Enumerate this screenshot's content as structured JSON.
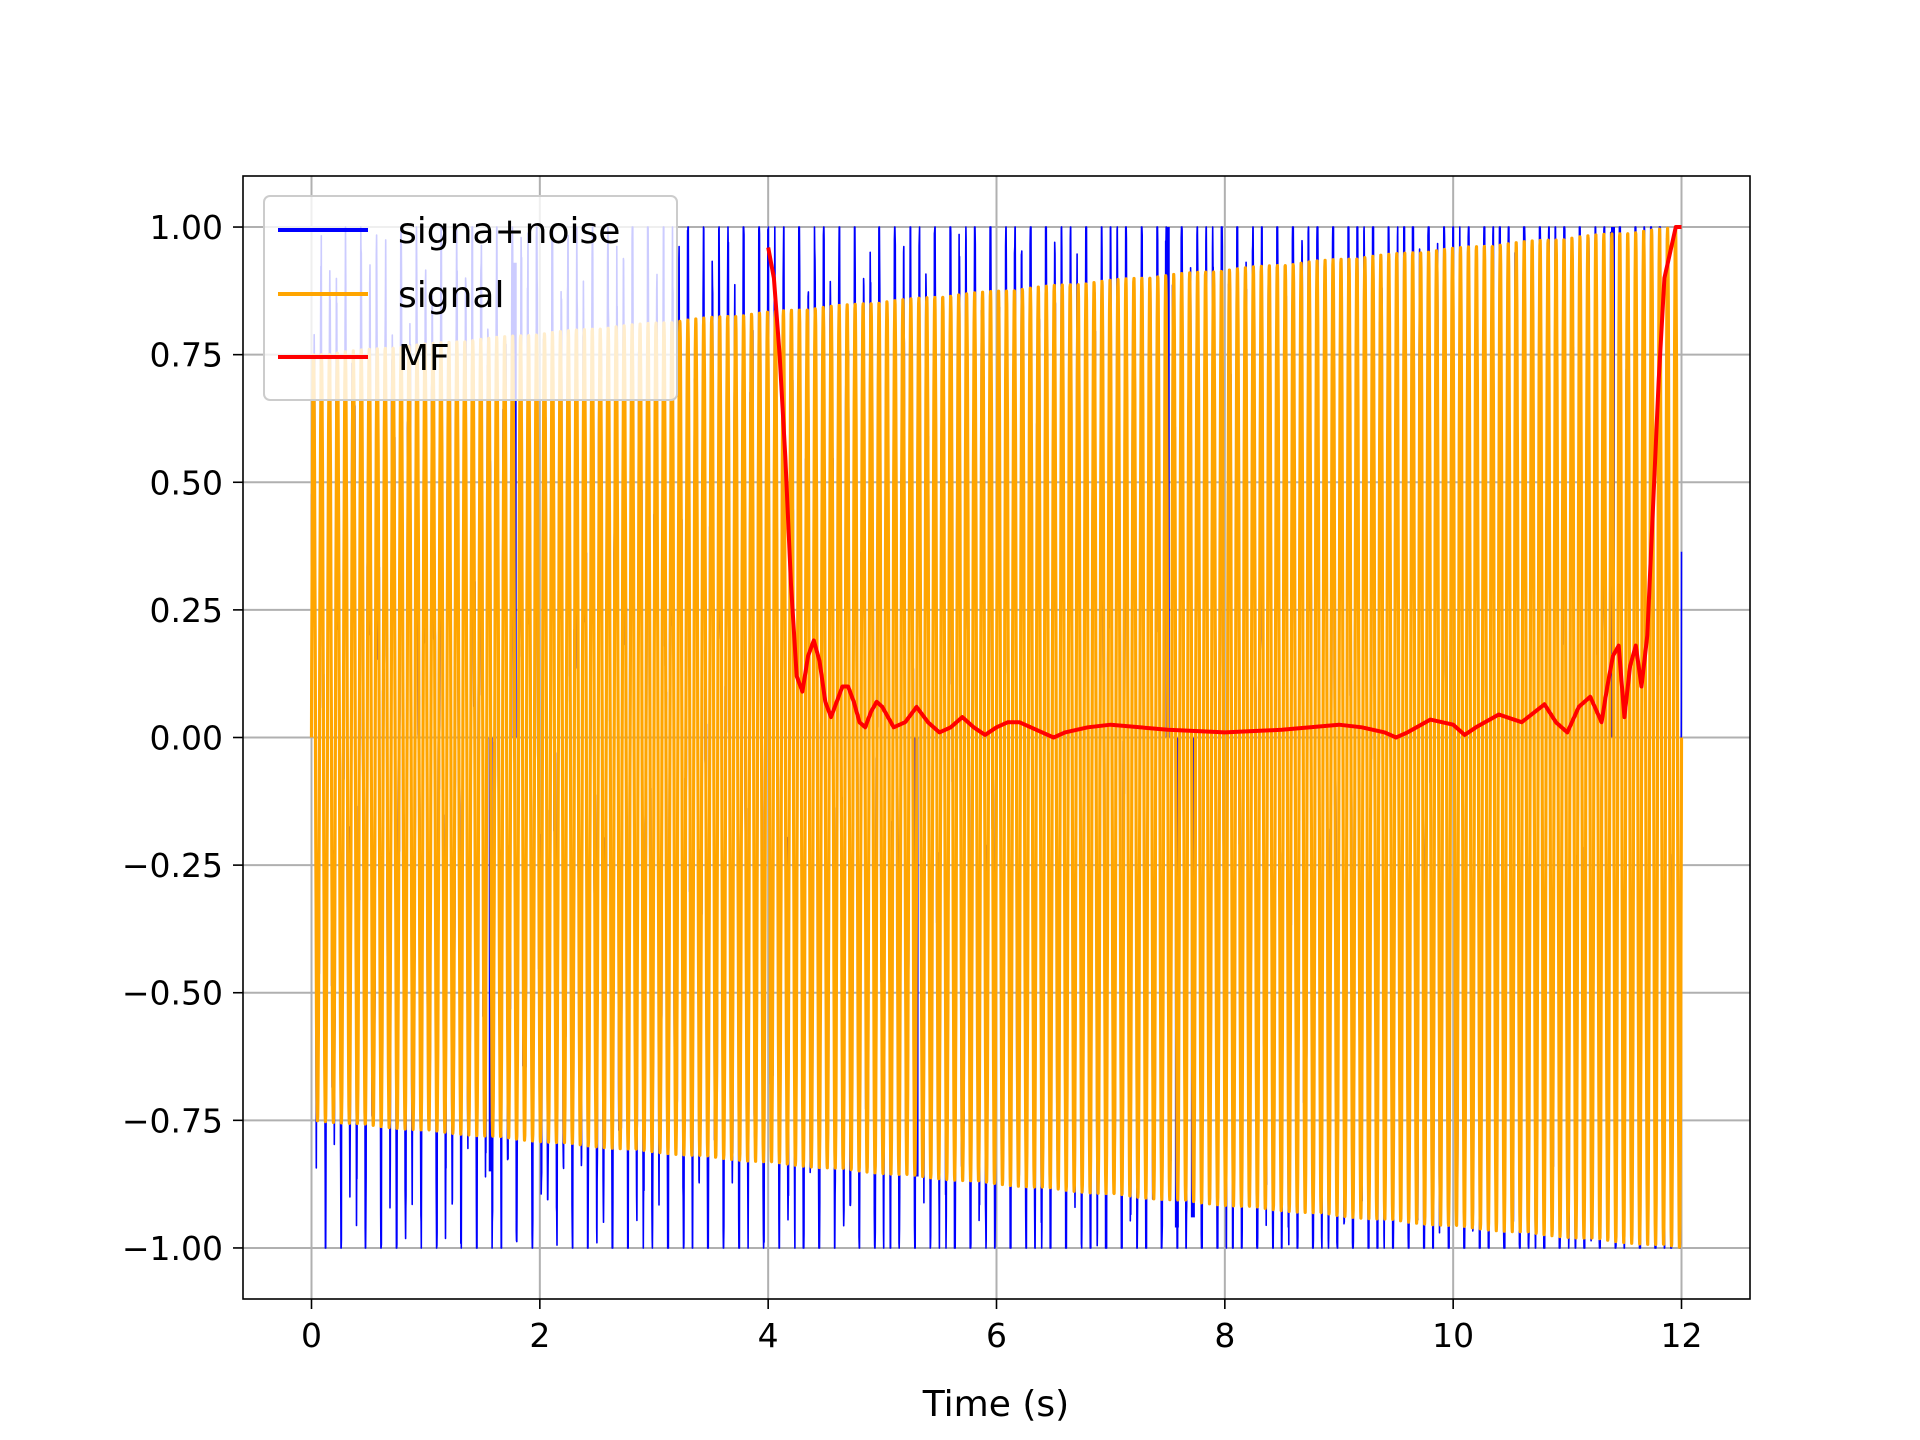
{
  "chart_data": {
    "type": "line",
    "title": "",
    "xlabel": "Time (s)",
    "ylabel": "",
    "xlim": [
      -0.6,
      12.6
    ],
    "ylim": [
      -1.1,
      1.1
    ],
    "xticks": [
      0,
      2,
      4,
      6,
      8,
      10,
      12
    ],
    "xtick_labels": [
      "0",
      "2",
      "4",
      "6",
      "8",
      "10",
      "12"
    ],
    "yticks": [
      1.0,
      0.75,
      0.5,
      0.25,
      0.0,
      -0.25,
      -0.5,
      -0.75,
      -1.0
    ],
    "ytick_labels": [
      "1.00",
      "0.75",
      "0.50",
      "0.25",
      "0.00",
      "−0.25",
      "−0.50",
      "−0.75",
      "−1.00"
    ],
    "grid": true,
    "legend_position": "upper-left",
    "series": [
      {
        "name": "signa+noise",
        "color": "#0000ff",
        "kind": "chirp-with-noise",
        "t_start": 0,
        "t_end": 12,
        "amplitude_start": 0.75,
        "amplitude_end": 1.0,
        "cycles": 172,
        "notable_points": [
          {
            "x": 1.57,
            "y": -0.85
          },
          {
            "x": 1.78,
            "y": 0.93
          },
          {
            "x": 5.3,
            "y": -0.86
          },
          {
            "x": 7.5,
            "y": 1.0
          },
          {
            "x": 7.58,
            "y": -0.96
          },
          {
            "x": 7.72,
            "y": -0.94
          },
          {
            "x": 11.4,
            "y": 1.0
          }
        ]
      },
      {
        "name": "signal",
        "color": "#ffa500",
        "kind": "chirp",
        "t_start": 0,
        "t_end": 12,
        "amplitude_start": 0.75,
        "amplitude_end": 1.0,
        "cycles": 172
      },
      {
        "name": "MF",
        "color": "#ff0000",
        "kind": "sampled",
        "x": [
          4.0,
          4.05,
          4.1,
          4.15,
          4.2,
          4.25,
          4.3,
          4.35,
          4.4,
          4.45,
          4.5,
          4.55,
          4.6,
          4.65,
          4.7,
          4.75,
          4.8,
          4.85,
          4.9,
          4.95,
          5.0,
          5.1,
          5.2,
          5.3,
          5.4,
          5.5,
          5.6,
          5.7,
          5.8,
          5.9,
          6.0,
          6.1,
          6.2,
          6.3,
          6.4,
          6.5,
          6.6,
          6.8,
          7.0,
          7.5,
          8.0,
          8.5,
          9.0,
          9.2,
          9.4,
          9.5,
          9.6,
          9.8,
          10.0,
          10.1,
          10.2,
          10.4,
          10.6,
          10.8,
          10.9,
          11.0,
          11.1,
          11.2,
          11.3,
          11.35,
          11.4,
          11.45,
          11.5,
          11.55,
          11.6,
          11.65,
          11.7,
          11.75,
          11.8,
          11.85,
          11.9,
          11.95,
          12.0
        ],
        "y": [
          0.96,
          0.9,
          0.75,
          0.55,
          0.3,
          0.12,
          0.09,
          0.16,
          0.19,
          0.15,
          0.07,
          0.04,
          0.07,
          0.1,
          0.1,
          0.07,
          0.03,
          0.02,
          0.05,
          0.07,
          0.06,
          0.02,
          0.03,
          0.06,
          0.03,
          0.01,
          0.02,
          0.04,
          0.02,
          0.005,
          0.02,
          0.03,
          0.03,
          0.02,
          0.01,
          0.0,
          0.01,
          0.02,
          0.025,
          0.015,
          0.01,
          0.015,
          0.025,
          0.02,
          0.01,
          0.0,
          0.01,
          0.035,
          0.025,
          0.005,
          0.02,
          0.045,
          0.03,
          0.065,
          0.03,
          0.01,
          0.06,
          0.08,
          0.03,
          0.1,
          0.16,
          0.18,
          0.04,
          0.14,
          0.18,
          0.1,
          0.2,
          0.45,
          0.7,
          0.9,
          0.95,
          1.0,
          1.0
        ]
      }
    ]
  }
}
